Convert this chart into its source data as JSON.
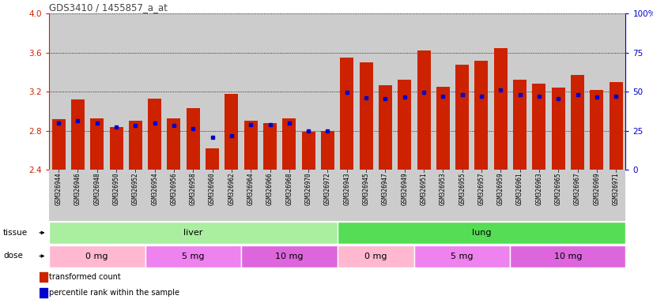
{
  "title": "GDS3410 / 1455857_a_at",
  "samples": [
    "GSM326944",
    "GSM326946",
    "GSM326948",
    "GSM326950",
    "GSM326952",
    "GSM326954",
    "GSM326956",
    "GSM326958",
    "GSM326960",
    "GSM326962",
    "GSM326964",
    "GSM326966",
    "GSM326968",
    "GSM326970",
    "GSM326972",
    "GSM326943",
    "GSM326945",
    "GSM326947",
    "GSM326949",
    "GSM326951",
    "GSM326953",
    "GSM326955",
    "GSM326957",
    "GSM326959",
    "GSM326961",
    "GSM326963",
    "GSM326965",
    "GSM326967",
    "GSM326969",
    "GSM326971"
  ],
  "red_values": [
    2.92,
    3.12,
    2.93,
    2.84,
    2.9,
    3.13,
    2.93,
    3.03,
    2.62,
    3.18,
    2.9,
    2.88,
    2.93,
    2.79,
    2.8,
    3.55,
    3.5,
    3.27,
    3.32,
    3.62,
    3.25,
    3.48,
    3.52,
    3.65,
    3.32,
    3.28,
    3.24,
    3.37,
    3.22,
    3.3
  ],
  "blue_values": [
    2.88,
    2.905,
    2.88,
    2.84,
    2.855,
    2.88,
    2.855,
    2.825,
    2.73,
    2.745,
    2.86,
    2.86,
    2.88,
    2.795,
    2.795,
    3.195,
    3.135,
    3.125,
    3.145,
    3.195,
    3.155,
    3.165,
    3.155,
    3.215,
    3.165,
    3.155,
    3.125,
    3.165,
    3.145,
    3.155
  ],
  "ylim": [
    2.4,
    4.0
  ],
  "yticks_left": [
    2.4,
    2.8,
    3.2,
    3.6,
    4.0
  ],
  "yticks_right": [
    0,
    25,
    50,
    75,
    100
  ],
  "tissue_groups": [
    {
      "label": "liver",
      "start": 0,
      "end": 15,
      "color": "#AAEEA0"
    },
    {
      "label": "lung",
      "start": 15,
      "end": 30,
      "color": "#55DD55"
    }
  ],
  "dose_groups": [
    {
      "label": "0 mg",
      "start": 0,
      "end": 5,
      "color": "#FFB8D0"
    },
    {
      "label": "5 mg",
      "start": 5,
      "end": 10,
      "color": "#EE82EE"
    },
    {
      "label": "10 mg",
      "start": 10,
      "end": 15,
      "color": "#DD66DD"
    },
    {
      "label": "0 mg",
      "start": 15,
      "end": 19,
      "color": "#FFB8D0"
    },
    {
      "label": "5 mg",
      "start": 19,
      "end": 24,
      "color": "#EE82EE"
    },
    {
      "label": "10 mg",
      "start": 24,
      "end": 30,
      "color": "#DD66DD"
    }
  ],
  "bar_color": "#CC2200",
  "dot_color": "#0000CC",
  "plot_bg_color": "#CCCCCC",
  "xlabel_bg_color": "#CCCCCC",
  "left_axis_color": "#CC2200",
  "right_axis_color": "#0000CC",
  "title_color": "#444444"
}
